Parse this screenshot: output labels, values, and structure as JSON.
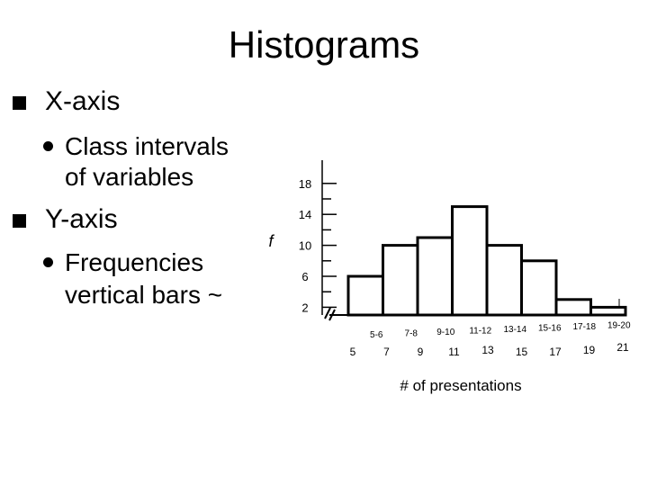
{
  "slide": {
    "title": "Histograms",
    "bullets": [
      {
        "text": "X-axis",
        "sub": [
          "Class intervals",
          "of variables"
        ]
      },
      {
        "text": "Y-axis",
        "sub": [
          "Frequencies",
          "vertical bars ~"
        ]
      }
    ]
  },
  "chart_data": {
    "type": "bar",
    "ylabel": "f",
    "xlabel": "# of presentations",
    "y_ticks": [
      "18",
      "14",
      "10",
      "6",
      "2"
    ],
    "categories": [
      "5-6",
      "7-8",
      "9-10",
      "11-12",
      "13-14",
      "15-16",
      "17-18",
      "19-20"
    ],
    "boundary_labels": [
      "5",
      "7",
      "9",
      "11",
      "13",
      "15",
      "17",
      "19",
      "21"
    ],
    "values": [
      6,
      10,
      11,
      15,
      10,
      8,
      3,
      2
    ],
    "ylim": [
      1,
      21
    ],
    "grid": false,
    "legend": "none"
  }
}
